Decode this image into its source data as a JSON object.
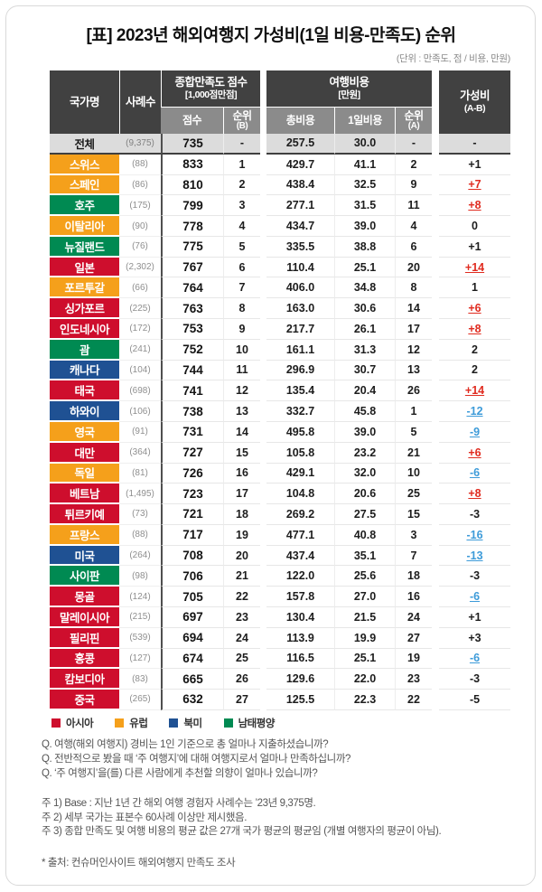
{
  "chart_data": {
    "type": "table",
    "title": "[표] 2023년 해외여행지 가성비(1일 비용-만족도) 순위",
    "units_note": "(단위 : 만족도, 점 / 비용, 만원)",
    "header": {
      "country": "국가명",
      "samples": "사례수",
      "satisfaction_group": "종합만족도 점수",
      "satisfaction_group_sub": "[1,000점만점]",
      "score": "점수",
      "rank_b": "순위",
      "rank_b_sub": "(B)",
      "cost_group": "여행비용",
      "cost_group_sub": "[만원]",
      "total_cost": "총비용",
      "daily_cost": "1일비용",
      "rank_a": "순위",
      "rank_a_sub": "(A)",
      "value": "가성비",
      "value_sub": "(A-B)"
    },
    "summary_row": {
      "country": "전체",
      "samples": "(9,375)",
      "score": "735",
      "rank_b": "-",
      "total": "257.5",
      "daily": "30.0",
      "rank_a": "-",
      "value": "-"
    },
    "rows": [
      {
        "country": "스위스",
        "region": "europe",
        "samples": "(88)",
        "score": "833",
        "rank_b": "1",
        "total": "429.7",
        "daily": "41.1",
        "rank_a": "2",
        "value": "+1",
        "value_style": "plain"
      },
      {
        "country": "스페인",
        "region": "europe",
        "samples": "(86)",
        "score": "810",
        "rank_b": "2",
        "total": "438.4",
        "daily": "32.5",
        "rank_a": "9",
        "value": "+7",
        "value_style": "red"
      },
      {
        "country": "호주",
        "region": "pacific",
        "samples": "(175)",
        "score": "799",
        "rank_b": "3",
        "total": "277.1",
        "daily": "31.5",
        "rank_a": "11",
        "value": "+8",
        "value_style": "red"
      },
      {
        "country": "이탈리아",
        "region": "europe",
        "samples": "(90)",
        "score": "778",
        "rank_b": "4",
        "total": "434.7",
        "daily": "39.0",
        "rank_a": "4",
        "value": "0",
        "value_style": "plain"
      },
      {
        "country": "뉴질랜드",
        "region": "pacific",
        "samples": "(76)",
        "score": "775",
        "rank_b": "5",
        "total": "335.5",
        "daily": "38.8",
        "rank_a": "6",
        "value": "+1",
        "value_style": "plain"
      },
      {
        "country": "일본",
        "region": "asia",
        "samples": "(2,302)",
        "score": "767",
        "rank_b": "6",
        "total": "110.4",
        "daily": "25.1",
        "rank_a": "20",
        "value": "+14",
        "value_style": "red"
      },
      {
        "country": "포르투갈",
        "region": "europe",
        "samples": "(66)",
        "score": "764",
        "rank_b": "7",
        "total": "406.0",
        "daily": "34.8",
        "rank_a": "8",
        "value": "1",
        "value_style": "plain"
      },
      {
        "country": "싱가포르",
        "region": "asia",
        "samples": "(225)",
        "score": "763",
        "rank_b": "8",
        "total": "163.0",
        "daily": "30.6",
        "rank_a": "14",
        "value": "+6",
        "value_style": "red"
      },
      {
        "country": "인도네시아",
        "region": "asia",
        "samples": "(172)",
        "score": "753",
        "rank_b": "9",
        "total": "217.7",
        "daily": "26.1",
        "rank_a": "17",
        "value": "+8",
        "value_style": "red"
      },
      {
        "country": "괌",
        "region": "pacific",
        "samples": "(241)",
        "score": "752",
        "rank_b": "10",
        "total": "161.1",
        "daily": "31.3",
        "rank_a": "12",
        "value": "2",
        "value_style": "plain"
      },
      {
        "country": "캐나다",
        "region": "north_america",
        "samples": "(104)",
        "score": "744",
        "rank_b": "11",
        "total": "296.9",
        "daily": "30.7",
        "rank_a": "13",
        "value": "2",
        "value_style": "plain"
      },
      {
        "country": "태국",
        "region": "asia",
        "samples": "(698)",
        "score": "741",
        "rank_b": "12",
        "total": "135.4",
        "daily": "20.4",
        "rank_a": "26",
        "value": "+14",
        "value_style": "red"
      },
      {
        "country": "하와이",
        "region": "north_america",
        "samples": "(106)",
        "score": "738",
        "rank_b": "13",
        "total": "332.7",
        "daily": "45.8",
        "rank_a": "1",
        "value": "-12",
        "value_style": "blue"
      },
      {
        "country": "영국",
        "region": "europe",
        "samples": "(91)",
        "score": "731",
        "rank_b": "14",
        "total": "495.8",
        "daily": "39.0",
        "rank_a": "5",
        "value": "-9",
        "value_style": "blue"
      },
      {
        "country": "대만",
        "region": "asia",
        "samples": "(364)",
        "score": "727",
        "rank_b": "15",
        "total": "105.8",
        "daily": "23.2",
        "rank_a": "21",
        "value": "+6",
        "value_style": "red"
      },
      {
        "country": "독일",
        "region": "europe",
        "samples": "(81)",
        "score": "726",
        "rank_b": "16",
        "total": "429.1",
        "daily": "32.0",
        "rank_a": "10",
        "value": "-6",
        "value_style": "blue"
      },
      {
        "country": "베트남",
        "region": "asia",
        "samples": "(1,495)",
        "score": "723",
        "rank_b": "17",
        "total": "104.8",
        "daily": "20.6",
        "rank_a": "25",
        "value": "+8",
        "value_style": "red"
      },
      {
        "country": "튀르키예",
        "region": "asia",
        "samples": "(73)",
        "score": "721",
        "rank_b": "18",
        "total": "269.2",
        "daily": "27.5",
        "rank_a": "15",
        "value": "-3",
        "value_style": "plain"
      },
      {
        "country": "프랑스",
        "region": "europe",
        "samples": "(88)",
        "score": "717",
        "rank_b": "19",
        "total": "477.1",
        "daily": "40.8",
        "rank_a": "3",
        "value": "-16",
        "value_style": "blue"
      },
      {
        "country": "미국",
        "region": "north_america",
        "samples": "(264)",
        "score": "708",
        "rank_b": "20",
        "total": "437.4",
        "daily": "35.1",
        "rank_a": "7",
        "value": "-13",
        "value_style": "blue"
      },
      {
        "country": "사이판",
        "region": "pacific",
        "samples": "(98)",
        "score": "706",
        "rank_b": "21",
        "total": "122.0",
        "daily": "25.6",
        "rank_a": "18",
        "value": "-3",
        "value_style": "plain"
      },
      {
        "country": "몽골",
        "region": "asia",
        "samples": "(124)",
        "score": "705",
        "rank_b": "22",
        "total": "157.8",
        "daily": "27.0",
        "rank_a": "16",
        "value": "-6",
        "value_style": "blue"
      },
      {
        "country": "말레이시아",
        "region": "asia",
        "samples": "(215)",
        "score": "697",
        "rank_b": "23",
        "total": "130.4",
        "daily": "21.5",
        "rank_a": "24",
        "value": "+1",
        "value_style": "plain"
      },
      {
        "country": "필리핀",
        "region": "asia",
        "samples": "(539)",
        "score": "694",
        "rank_b": "24",
        "total": "113.9",
        "daily": "19.9",
        "rank_a": "27",
        "value": "+3",
        "value_style": "plain"
      },
      {
        "country": "홍콩",
        "region": "asia",
        "samples": "(127)",
        "score": "674",
        "rank_b": "25",
        "total": "116.5",
        "daily": "25.1",
        "rank_a": "19",
        "value": "-6",
        "value_style": "blue"
      },
      {
        "country": "캄보디아",
        "region": "asia",
        "samples": "(83)",
        "score": "665",
        "rank_b": "26",
        "total": "129.6",
        "daily": "22.0",
        "rank_a": "23",
        "value": "-3",
        "value_style": "plain"
      },
      {
        "country": "중국",
        "region": "asia",
        "samples": "(265)",
        "score": "632",
        "rank_b": "27",
        "total": "125.5",
        "daily": "22.3",
        "rank_a": "22",
        "value": "-5",
        "value_style": "plain"
      }
    ],
    "region_colors": {
      "asia": "#ce0e2d",
      "europe": "#f5a01b",
      "north_america": "#1f5193",
      "pacific": "#008a52"
    },
    "value_colors": {
      "red": "#e02b1f",
      "blue": "#3d9bd9"
    },
    "legend": [
      {
        "label": "아시아",
        "color": "#ce0e2d"
      },
      {
        "label": "유럽",
        "color": "#f5a01b"
      },
      {
        "label": "북미",
        "color": "#1f5193"
      },
      {
        "label": "남태평양",
        "color": "#008a52"
      }
    ],
    "questions": [
      "Q. 여행(해외 여행지) 경비는 1인 기준으로 총 얼마나 지출하셨습니까?",
      "Q. 전반적으로 봤을 때 ‘주 여행지’에 대해 여행지로서 얼마나 만족하십니까?",
      "Q. ‘주 여행지’을(를) 다른 사람에게 추천할 의향이 얼마나 있습니까?"
    ],
    "footnotes": [
      "주 1) Base : 지난 1년 간 해외 여행 경험자 사례수는 ’23년 9,375명.",
      "주 2) 세부 국가는 표본수 60사례 이상만 제시했음.",
      "주 3) 종합 만족도 및 여행 비용의 평균 값은 27개 국가 평균의 평균임 (개별 여행자의 평균이 아님)."
    ],
    "source": "* 출처: 컨슈머인사이트 해외여행지 만족도 조사"
  }
}
